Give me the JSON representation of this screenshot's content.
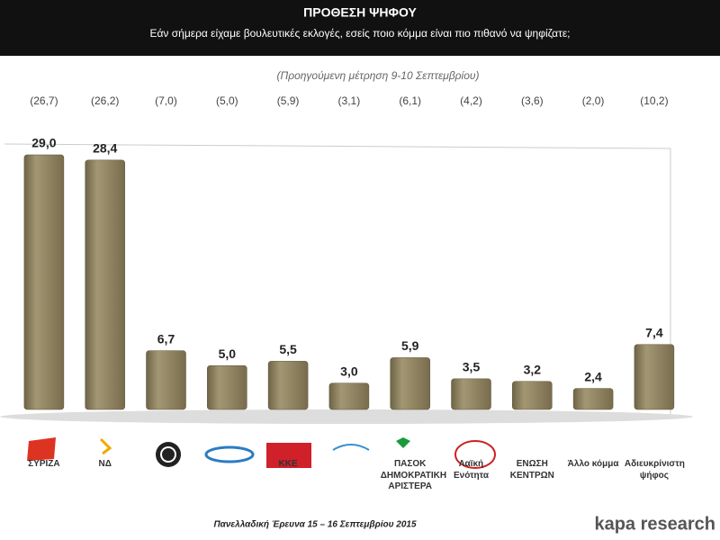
{
  "chart_data": {
    "type": "bar",
    "title": "ΠΡΟΘΕΣΗ ΨΗΦΟΥ",
    "subtitle": "Εάν σήμερα είχαμε βουλευτικές εκλογές, εσείς ποιο κόμμα είναι πιο πιθανό να ψηφίζατε;",
    "previous_note": "(Προηγούμενη μέτρηση 9-10 Σεπτεμβρίου)",
    "previous_labels": [
      "(26,7)",
      "(26,2)",
      "(7,0)",
      "(5,0)",
      "(5,9)",
      "(3,1)",
      "(6,1)",
      "(4,2)",
      "(3,6)",
      "(2,0)",
      "(10,2)"
    ],
    "categories": [
      "ΣΥΡΙΖΑ",
      "ΝΔ",
      null,
      null,
      "ΚΚΕ",
      null,
      "ΠΑΣΟΚ ΔΗΜΟΚΡΑΤΙΚΗ ΑΡΙΣΤΕΡΑ",
      "Λαϊκή Ενότητα",
      "ΕΝΩΣΗ ΚΕΝΤΡΩΝ",
      "Άλλο κόμμα",
      "Αδιευκρίνιστη ψήφος"
    ],
    "values": [
      29.0,
      28.4,
      6.7,
      5.0,
      5.5,
      3.0,
      5.9,
      3.5,
      3.2,
      2.4,
      7.4
    ],
    "value_labels": [
      "29,0",
      "28,4",
      "6,7",
      "5,0",
      "5,5",
      "3,0",
      "5,9",
      "3,5",
      "3,2",
      "2,4",
      "7,4"
    ],
    "color": "#8b7f5e",
    "footer": "Πανελλαδική Έρευνα 15 – 16 Σεπτεμβρίου 2015",
    "brand": "kapa research"
  }
}
